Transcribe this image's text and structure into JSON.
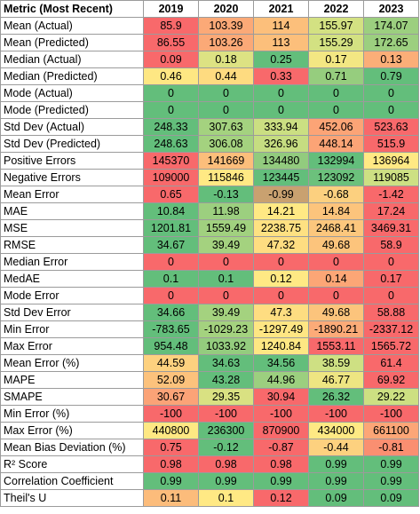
{
  "header": [
    "Metric (Most Recent)",
    "2019",
    "2020",
    "2021",
    "2022",
    "2023"
  ],
  "rows": [
    {
      "metric": "Mean (Actual)",
      "values": [
        "85.9",
        "103.39",
        "114",
        "155.97",
        "174.07"
      ],
      "colors": [
        "#f8696b",
        "#fba977",
        "#fcbf7b",
        "#d3e182",
        "#9ccf7f"
      ]
    },
    {
      "metric": "Mean (Predicted)",
      "values": [
        "86.55",
        "103.26",
        "113",
        "155.29",
        "172.65"
      ],
      "colors": [
        "#f8696b",
        "#fba977",
        "#fcbf7b",
        "#d3e182",
        "#9ccf7f"
      ]
    },
    {
      "metric": "Median (Actual)",
      "values": [
        "0.09",
        "0.18",
        "0.25",
        "0.17",
        "0.13"
      ],
      "colors": [
        "#f8696b",
        "#dde283",
        "#63be7b",
        "#f3e783",
        "#fbae78"
      ]
    },
    {
      "metric": "Median (Predicted)",
      "values": [
        "0.46",
        "0.44",
        "0.33",
        "0.71",
        "0.79"
      ],
      "colors": [
        "#fee783",
        "#fedb80",
        "#f8696b",
        "#96cd7e",
        "#63be7b"
      ]
    },
    {
      "metric": "Mode (Actual)",
      "values": [
        "0",
        "0",
        "0",
        "0",
        "0"
      ],
      "colors": [
        "#63be7b",
        "#63be7b",
        "#63be7b",
        "#63be7b",
        "#63be7b"
      ]
    },
    {
      "metric": "Mode (Predicted)",
      "values": [
        "0",
        "0",
        "0",
        "0",
        "0"
      ],
      "colors": [
        "#63be7b",
        "#63be7b",
        "#63be7b",
        "#63be7b",
        "#63be7b"
      ]
    },
    {
      "metric": "Std Dev (Actual)",
      "values": [
        "248.33",
        "307.63",
        "333.94",
        "452.06",
        "523.63"
      ],
      "colors": [
        "#63be7b",
        "#a4d27f",
        "#cbdf82",
        "#fca476",
        "#f8696b"
      ]
    },
    {
      "metric": "Std Dev (Predicted)",
      "values": [
        "248.63",
        "306.08",
        "326.96",
        "448.14",
        "515.9"
      ],
      "colors": [
        "#63be7b",
        "#a4d27f",
        "#c6dd81",
        "#fca476",
        "#f8696b"
      ]
    },
    {
      "metric": "Positive Errors",
      "values": [
        "145370",
        "141669",
        "134480",
        "132994",
        "136964"
      ],
      "colors": [
        "#f8696b",
        "#fcbe7b",
        "#92cb7e",
        "#63be7b",
        "#ffe984"
      ]
    },
    {
      "metric": "Negative Errors",
      "values": [
        "109000",
        "115846",
        "123445",
        "123092",
        "119085"
      ],
      "colors": [
        "#f8696b",
        "#ffe984",
        "#63be7b",
        "#6cc17c",
        "#cde083"
      ]
    },
    {
      "metric": "Mean Error",
      "values": [
        "0.65",
        "-0.13",
        "-0.99",
        "-0.68",
        "-1.42"
      ],
      "colors": [
        "#f8696b",
        "#63be7b",
        "#c9a170",
        "#fcd07f",
        "#f8696b"
      ]
    },
    {
      "metric": "MAE",
      "values": [
        "10.84",
        "11.98",
        "14.21",
        "14.84",
        "17.24"
      ],
      "colors": [
        "#63be7b",
        "#9ccf7f",
        "#ffe984",
        "#fcc47c",
        "#f8696b"
      ]
    },
    {
      "metric": "MSE",
      "values": [
        "1201.81",
        "1559.49",
        "2238.75",
        "2468.41",
        "3469.31"
      ],
      "colors": [
        "#63be7b",
        "#a1d17f",
        "#fee182",
        "#fcc77d",
        "#f8696b"
      ]
    },
    {
      "metric": "RMSE",
      "values": [
        "34.67",
        "39.49",
        "47.32",
        "49.68",
        "58.9"
      ],
      "colors": [
        "#63be7b",
        "#a4d27f",
        "#fedd81",
        "#fcc47c",
        "#f8696b"
      ]
    },
    {
      "metric": "Median Error",
      "values": [
        "0",
        "0",
        "0",
        "0",
        "0"
      ],
      "colors": [
        "#f8696b",
        "#f8696b",
        "#f8696b",
        "#f8696b",
        "#f8696b"
      ]
    },
    {
      "metric": "MedAE",
      "values": [
        "0.1",
        "0.1",
        "0.12",
        "0.14",
        "0.17"
      ],
      "colors": [
        "#63be7b",
        "#63be7b",
        "#ffe984",
        "#fca676",
        "#f8696b"
      ]
    },
    {
      "metric": "Mode Error",
      "values": [
        "0",
        "0",
        "0",
        "0",
        "0"
      ],
      "colors": [
        "#f8696b",
        "#f8696b",
        "#f8696b",
        "#f8696b",
        "#f8696b"
      ]
    },
    {
      "metric": "Std Dev Error",
      "values": [
        "34.66",
        "39.49",
        "47.3",
        "49.68",
        "58.88"
      ],
      "colors": [
        "#63be7b",
        "#a4d27f",
        "#fedd81",
        "#fcc47c",
        "#f8696b"
      ]
    },
    {
      "metric": "Min Error",
      "values": [
        "-783.65",
        "-1029.23",
        "-1297.49",
        "-1890.21",
        "-2337.12"
      ],
      "colors": [
        "#63be7b",
        "#a4d27f",
        "#fee683",
        "#fcab78",
        "#f8696b"
      ]
    },
    {
      "metric": "Max Error",
      "values": [
        "954.48",
        "1033.92",
        "1240.84",
        "1553.11",
        "1565.72"
      ],
      "colors": [
        "#63be7b",
        "#94cc7e",
        "#fee783",
        "#f8696b",
        "#f8696b"
      ]
    },
    {
      "metric": "Mean Error (%)",
      "values": [
        "44.59",
        "34.63",
        "34.56",
        "38.59",
        "61.4"
      ],
      "colors": [
        "#fdd17f",
        "#63be7b",
        "#63be7b",
        "#cee083",
        "#f8696b"
      ]
    },
    {
      "metric": "MAPE",
      "values": [
        "52.09",
        "43.28",
        "44.96",
        "46.77",
        "69.92"
      ],
      "colors": [
        "#fcc27c",
        "#63be7b",
        "#9ccf7f",
        "#eee582",
        "#f8696b"
      ]
    },
    {
      "metric": "SMAPE",
      "values": [
        "30.67",
        "29.35",
        "30.94",
        "26.32",
        "29.22"
      ],
      "colors": [
        "#fba377",
        "#d9e182",
        "#f8696b",
        "#63be7b",
        "#cde082"
      ]
    },
    {
      "metric": "Min Error (%)",
      "values": [
        "-100",
        "-100",
        "-100",
        "-100",
        "-100"
      ],
      "colors": [
        "#f8696b",
        "#f8696b",
        "#f8696b",
        "#f8696b",
        "#f8696b"
      ]
    },
    {
      "metric": "Max Error (%)",
      "values": [
        "440800",
        "236300",
        "870900",
        "434000",
        "661100"
      ],
      "colors": [
        "#fee883",
        "#63be7b",
        "#f8696b",
        "#fee984",
        "#fca677"
      ]
    },
    {
      "metric": "Mean Bias Deviation (%)",
      "values": [
        "0.75",
        "-0.12",
        "-0.87",
        "-0.44",
        "-0.81"
      ],
      "colors": [
        "#f8696b",
        "#63be7b",
        "#f8696b",
        "#fdd17f",
        "#fa8f71"
      ]
    },
    {
      "metric": "R² Score",
      "values": [
        "0.98",
        "0.98",
        "0.98",
        "0.99",
        "0.99"
      ],
      "colors": [
        "#f8696b",
        "#f8696b",
        "#f8696b",
        "#63be7b",
        "#63be7b"
      ]
    },
    {
      "metric": "Correlation Coefficient",
      "values": [
        "0.99",
        "0.99",
        "0.99",
        "0.99",
        "0.99"
      ],
      "colors": [
        "#63be7b",
        "#63be7b",
        "#63be7b",
        "#63be7b",
        "#63be7b"
      ]
    },
    {
      "metric": "Theil's U",
      "values": [
        "0.11",
        "0.1",
        "0.12",
        "0.09",
        "0.09"
      ],
      "colors": [
        "#fcbc7b",
        "#ffe984",
        "#f8696b",
        "#63be7b",
        "#63be7b"
      ]
    }
  ]
}
